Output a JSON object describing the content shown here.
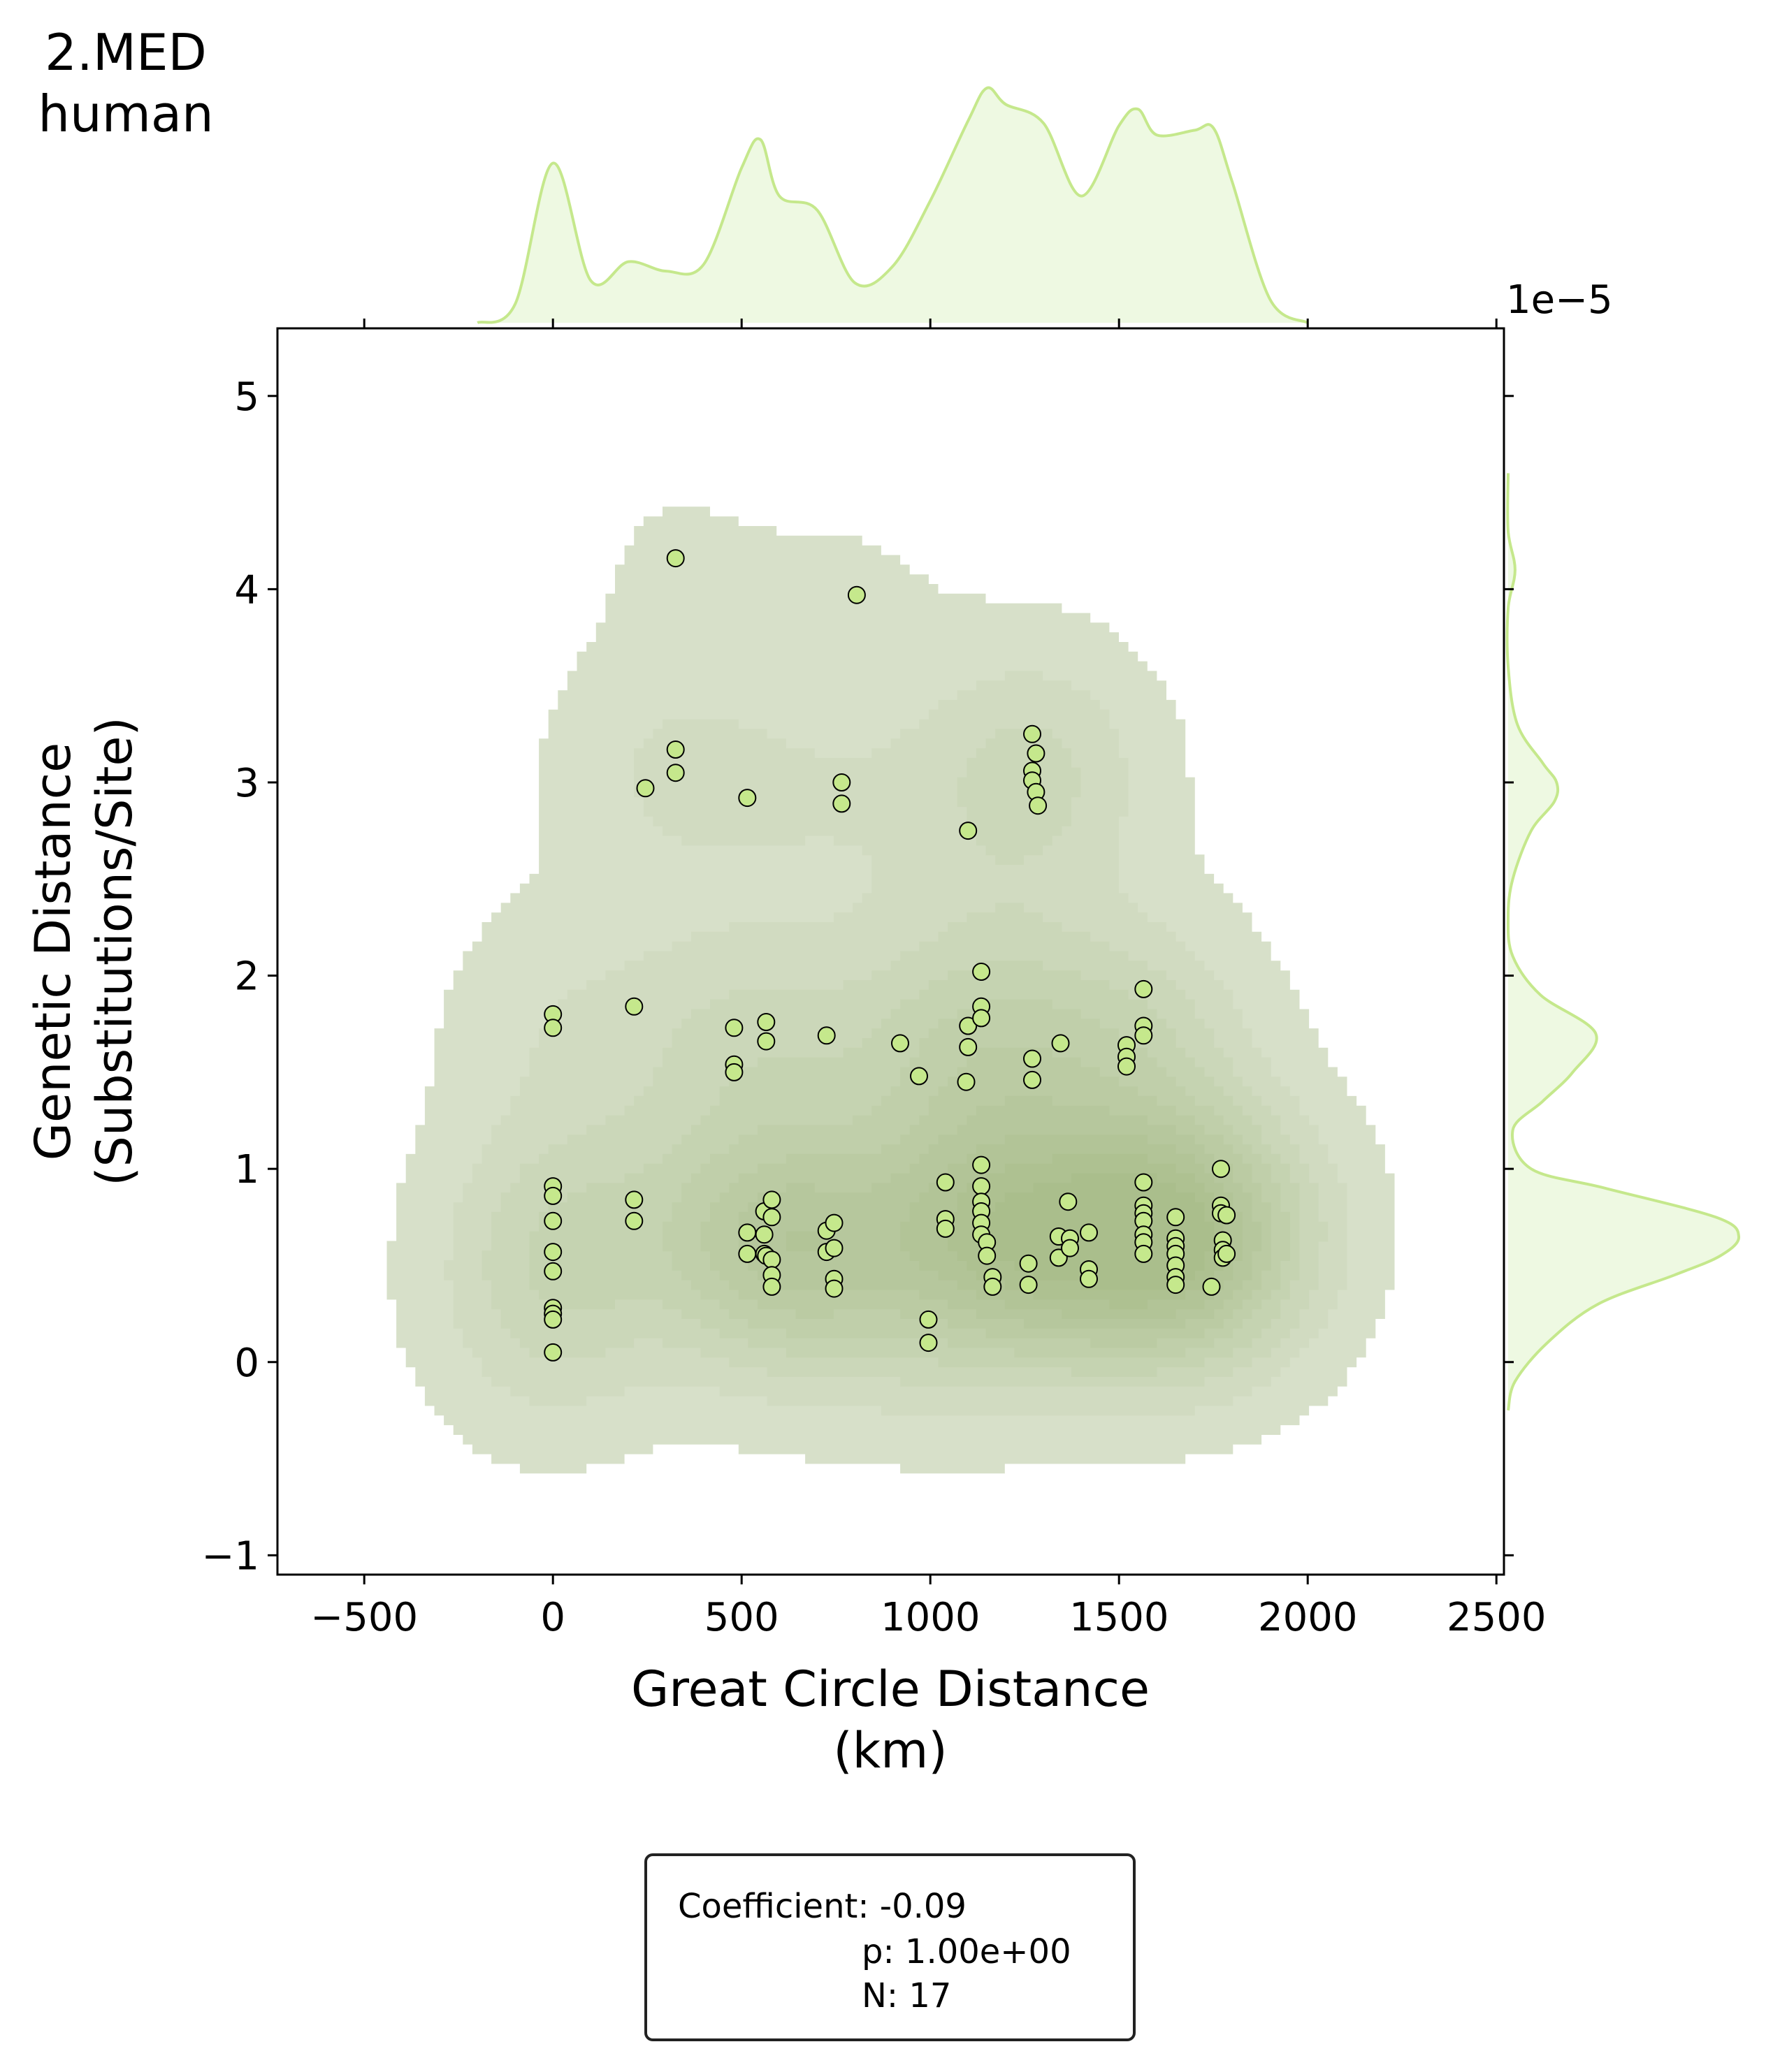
{
  "title": {
    "line1": "2.MED",
    "line2": "human"
  },
  "y_offset_label": "1e−5",
  "stats": {
    "coefficient": "Coefficient: -0.09",
    "p": "p: 1.00e+00",
    "n": "N: 17"
  },
  "chart_data": {
    "type": "scatter",
    "title": "2.MED human",
    "xlabel": "Great Circle Distance\n(km)",
    "ylabel": "Genetic Distance\n(Substitutions/Site)",
    "xlim": [
      -730,
      2520
    ],
    "ylim": [
      -1.1,
      5.35
    ],
    "y_scale_factor": "1e-5",
    "xticks": [
      -500,
      0,
      500,
      1000,
      1500,
      2000,
      2500
    ],
    "xtick_labels": [
      "−500",
      "0",
      "500",
      "1000",
      "1500",
      "2000",
      "2500"
    ],
    "yticks": [
      -1,
      0,
      1,
      2,
      3,
      4,
      5
    ],
    "ytick_labels": [
      "−1",
      "0",
      "1",
      "2",
      "3",
      "4",
      "5"
    ],
    "marker_color": "#c5e88c",
    "kde_color": "#6f8f3c",
    "marginal_line_color": "#c5e88c",
    "marginal_fill_color": "#eef9e2",
    "grid": false,
    "marginal_x": {
      "x": [
        -200,
        -100,
        0,
        100,
        200,
        300,
        400,
        500,
        550,
        600,
        700,
        800,
        900,
        1000,
        1100,
        1150,
        1200,
        1300,
        1400,
        1500,
        1550,
        1600,
        1700,
        1750,
        1800,
        1900,
        2000
      ],
      "density": [
        0.0,
        0.08,
        0.68,
        0.18,
        0.26,
        0.22,
        0.25,
        0.66,
        0.78,
        0.54,
        0.48,
        0.17,
        0.24,
        0.52,
        0.86,
        1.0,
        0.93,
        0.85,
        0.54,
        0.84,
        0.91,
        0.8,
        0.82,
        0.83,
        0.6,
        0.1,
        0.0
      ]
    },
    "marginal_y": {
      "y": [
        -0.25,
        -0.1,
        0.1,
        0.3,
        0.45,
        0.55,
        0.65,
        0.75,
        0.9,
        1.0,
        1.2,
        1.35,
        1.5,
        1.7,
        1.9,
        2.1,
        2.3,
        2.5,
        2.75,
        2.9,
        3.0,
        3.1,
        3.3,
        3.6,
        3.9,
        4.1,
        4.3,
        4.6
      ],
      "density": [
        0.0,
        0.03,
        0.17,
        0.39,
        0.72,
        0.92,
        1.0,
        0.9,
        0.42,
        0.1,
        0.02,
        0.15,
        0.28,
        0.38,
        0.14,
        0.02,
        0.0,
        0.02,
        0.1,
        0.2,
        0.21,
        0.15,
        0.04,
        0.0,
        0.0,
        0.03,
        0.0,
        0.0
      ]
    },
    "points": [
      [
        0,
        1.8
      ],
      [
        0,
        1.73
      ],
      [
        0,
        0.91
      ],
      [
        0,
        0.86
      ],
      [
        0,
        0.73
      ],
      [
        0,
        0.57
      ],
      [
        0,
        0.47
      ],
      [
        0,
        0.28
      ],
      [
        0,
        0.25
      ],
      [
        0,
        0.22
      ],
      [
        0,
        0.05
      ],
      [
        215,
        1.84
      ],
      [
        215,
        0.84
      ],
      [
        215,
        0.73
      ],
      [
        325,
        4.16
      ],
      [
        325,
        3.17
      ],
      [
        325,
        3.05
      ],
      [
        245,
        2.97
      ],
      [
        480,
        1.73
      ],
      [
        480,
        1.54
      ],
      [
        480,
        1.5
      ],
      [
        515,
        2.92
      ],
      [
        515,
        0.67
      ],
      [
        515,
        0.56
      ],
      [
        565,
        1.76
      ],
      [
        565,
        1.66
      ],
      [
        560,
        0.78
      ],
      [
        560,
        0.66
      ],
      [
        560,
        0.56
      ],
      [
        565,
        0.55
      ],
      [
        580,
        0.84
      ],
      [
        580,
        0.75
      ],
      [
        580,
        0.53
      ],
      [
        580,
        0.45
      ],
      [
        580,
        0.39
      ],
      [
        725,
        1.69
      ],
      [
        725,
        0.68
      ],
      [
        725,
        0.57
      ],
      [
        745,
        0.72
      ],
      [
        745,
        0.59
      ],
      [
        745,
        0.43
      ],
      [
        745,
        0.38
      ],
      [
        765,
        3.0
      ],
      [
        765,
        2.89
      ],
      [
        805,
        3.97
      ],
      [
        920,
        1.65
      ],
      [
        970,
        1.48
      ],
      [
        995,
        0.22
      ],
      [
        995,
        0.1
      ],
      [
        1040,
        0.93
      ],
      [
        1040,
        0.74
      ],
      [
        1040,
        0.69
      ],
      [
        1095,
        1.45
      ],
      [
        1100,
        1.74
      ],
      [
        1100,
        1.63
      ],
      [
        1100,
        2.75
      ],
      [
        1135,
        2.02
      ],
      [
        1135,
        1.84
      ],
      [
        1135,
        1.78
      ],
      [
        1135,
        1.02
      ],
      [
        1135,
        0.91
      ],
      [
        1135,
        0.83
      ],
      [
        1135,
        0.78
      ],
      [
        1135,
        0.72
      ],
      [
        1135,
        0.66
      ],
      [
        1150,
        0.62
      ],
      [
        1150,
        0.55
      ],
      [
        1165,
        0.44
      ],
      [
        1165,
        0.39
      ],
      [
        1270,
        3.25
      ],
      [
        1270,
        3.06
      ],
      [
        1270,
        3.01
      ],
      [
        1280,
        3.15
      ],
      [
        1280,
        2.95
      ],
      [
        1285,
        2.88
      ],
      [
        1270,
        1.57
      ],
      [
        1270,
        1.46
      ],
      [
        1345,
        1.65
      ],
      [
        1260,
        0.51
      ],
      [
        1260,
        0.4
      ],
      [
        1340,
        0.65
      ],
      [
        1340,
        0.54
      ],
      [
        1365,
        0.83
      ],
      [
        1370,
        0.64
      ],
      [
        1370,
        0.59
      ],
      [
        1420,
        0.67
      ],
      [
        1420,
        0.48
      ],
      [
        1420,
        0.43
      ],
      [
        1520,
        1.64
      ],
      [
        1520,
        1.58
      ],
      [
        1520,
        1.53
      ],
      [
        1565,
        1.93
      ],
      [
        1565,
        1.74
      ],
      [
        1565,
        1.69
      ],
      [
        1565,
        0.93
      ],
      [
        1565,
        0.81
      ],
      [
        1565,
        0.77
      ],
      [
        1565,
        0.73
      ],
      [
        1565,
        0.66
      ],
      [
        1565,
        0.62
      ],
      [
        1565,
        0.56
      ],
      [
        1650,
        0.75
      ],
      [
        1650,
        0.64
      ],
      [
        1650,
        0.6
      ],
      [
        1650,
        0.56
      ],
      [
        1650,
        0.5
      ],
      [
        1650,
        0.44
      ],
      [
        1650,
        0.4
      ],
      [
        1745,
        0.39
      ],
      [
        1770,
        1.0
      ],
      [
        1770,
        0.81
      ],
      [
        1770,
        0.77
      ],
      [
        1775,
        0.63
      ],
      [
        1775,
        0.58
      ],
      [
        1775,
        0.54
      ],
      [
        1785,
        0.76
      ],
      [
        1785,
        0.56
      ]
    ]
  }
}
